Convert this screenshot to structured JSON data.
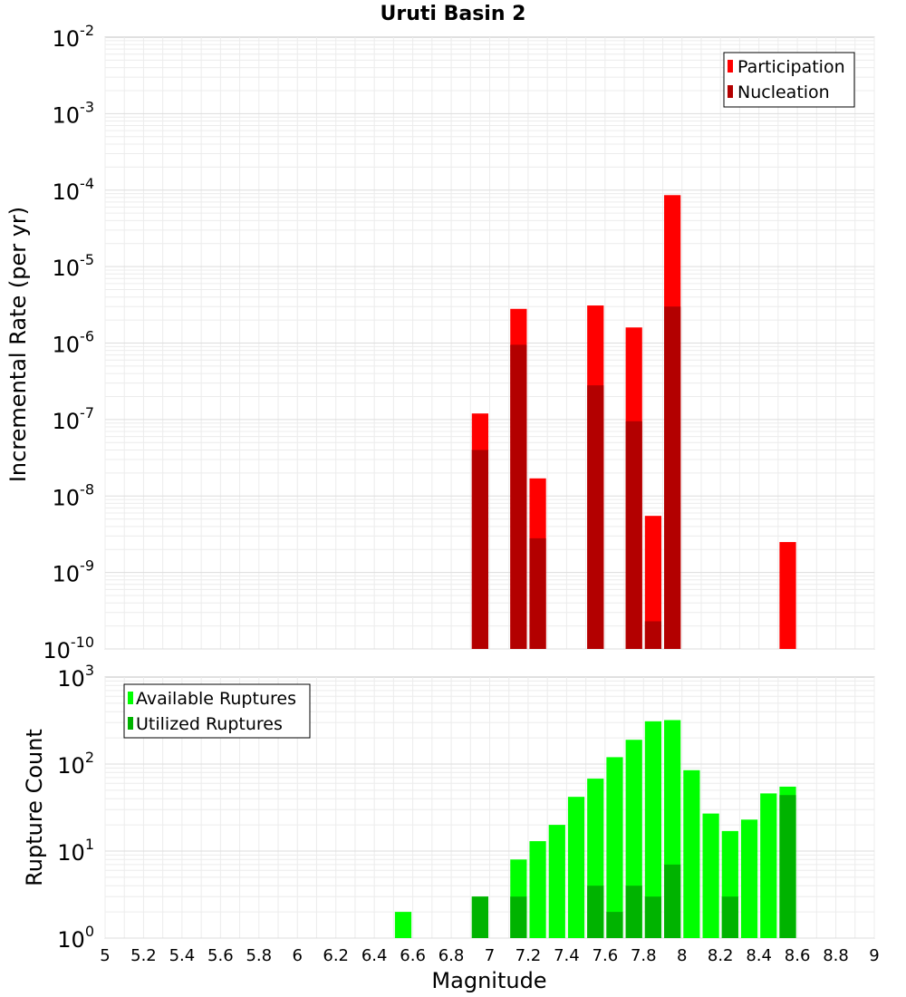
{
  "chart_data": {
    "type": "bar",
    "title": "Uruti Basin 2",
    "xlabel": "Magnitude",
    "xlim": [
      5,
      9
    ],
    "x_ticks": [
      5,
      5.2,
      5.4,
      5.6,
      5.8,
      6,
      6.2,
      6.4,
      6.6,
      6.8,
      7,
      7.2,
      7.4,
      7.6,
      7.8,
      8,
      8.2,
      8.4,
      8.6,
      8.8,
      9
    ],
    "x_tick_labels": [
      "5",
      "5.2",
      "5.4",
      "5.6",
      "5.8",
      "6",
      "6.2",
      "6.4",
      "6.6",
      "6.8",
      "7",
      "7.2",
      "7.4",
      "7.6",
      "7.8",
      "8",
      "8.2",
      "8.4",
      "8.6",
      "8.8",
      "9"
    ],
    "bin_width": 0.1,
    "panels": [
      {
        "ylabel": "Incremental Rate (per yr)",
        "yscale": "log",
        "ylim_exp": [
          -10,
          -2
        ],
        "y_tick_exponents": [
          -10,
          -9,
          -8,
          -7,
          -6,
          -5,
          -4,
          -3,
          -2
        ],
        "legend_position": "top-right",
        "x": [
          6.95,
          7.15,
          7.25,
          7.55,
          7.75,
          7.85,
          7.95,
          8.55
        ],
        "series": [
          {
            "name": "Participation",
            "color": "#ff0000",
            "values": [
              1.2e-07,
              2.8e-06,
              1.7e-08,
              3.1e-06,
              1.6e-06,
              5.5e-09,
              8.6e-05,
              2.5e-09
            ]
          },
          {
            "name": "Nucleation",
            "color": "#b30000",
            "values": [
              4e-08,
              9.5e-07,
              2.8e-09,
              2.8e-07,
              9.5e-08,
              2.3e-10,
              3e-06,
              null
            ]
          }
        ]
      },
      {
        "ylabel": "Rupture Count",
        "yscale": "log",
        "ylim_exp": [
          0,
          3
        ],
        "y_tick_exponents": [
          0,
          1,
          2,
          3
        ],
        "legend_position": "top-left",
        "x": [
          6.55,
          6.65,
          6.95,
          7.05,
          7.15,
          7.25,
          7.35,
          7.45,
          7.55,
          7.65,
          7.75,
          7.85,
          7.95,
          8.05,
          8.15,
          8.25,
          8.35,
          8.45,
          8.55
        ],
        "series": [
          {
            "name": "Available Ruptures",
            "color": "#00ff00",
            "values": [
              2,
              1,
              3,
              1,
              8,
              13,
              20,
              42,
              68,
              120,
              190,
              310,
              320,
              85,
              27,
              17,
              23,
              46,
              55
            ]
          },
          {
            "name": "Utilized Ruptures",
            "color": "#00b300",
            "values": [
              null,
              null,
              3,
              null,
              3,
              1,
              1,
              null,
              4,
              2,
              4,
              3,
              7,
              1,
              1,
              3,
              null,
              null,
              44
            ]
          }
        ]
      }
    ]
  }
}
